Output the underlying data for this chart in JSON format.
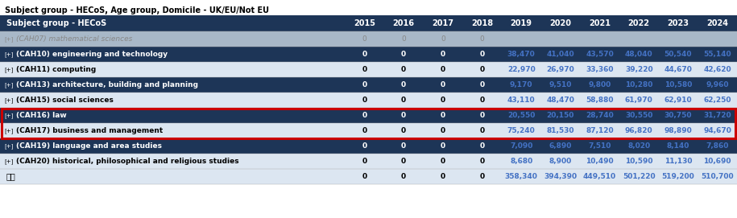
{
  "title": "Subject group - HECoS, Age group, Domicile - UK/EU/Not EU",
  "header": [
    "Subject group - HECoS",
    "2015",
    "2016",
    "2017",
    "2018",
    "2019",
    "2020",
    "2021",
    "2022",
    "2023",
    "2024"
  ],
  "rows": [
    {
      "label": "(CAH07) mathematical sciences",
      "values": [
        "0",
        "0",
        "0",
        "0",
        "",
        "",
        "",
        "",
        "",
        ""
      ],
      "style": "faded"
    },
    {
      "label": "(CAH10) engineering and technology",
      "values": [
        "0",
        "0",
        "0",
        "0",
        "38,470",
        "41,040",
        "43,570",
        "48,040",
        "50,540",
        "55,140"
      ],
      "style": "dark"
    },
    {
      "label": "(CAH11) computing",
      "values": [
        "0",
        "0",
        "0",
        "0",
        "22,970",
        "26,970",
        "33,360",
        "39,220",
        "44,670",
        "42,620"
      ],
      "style": "light"
    },
    {
      "label": "(CAH13) architecture, building and planning",
      "values": [
        "0",
        "0",
        "0",
        "0",
        "9,170",
        "9,510",
        "9,800",
        "10,280",
        "10,580",
        "9,960"
      ],
      "style": "dark"
    },
    {
      "label": "(CAH15) social sciences",
      "values": [
        "0",
        "0",
        "0",
        "0",
        "43,110",
        "48,470",
        "58,880",
        "61,970",
        "62,910",
        "62,250"
      ],
      "style": "light"
    },
    {
      "label": "(CAH16) law",
      "values": [
        "0",
        "0",
        "0",
        "0",
        "20,550",
        "20,150",
        "28,740",
        "30,550",
        "30,750",
        "31,720"
      ],
      "style": "dark",
      "highlighted": true
    },
    {
      "label": "(CAH17) business and management",
      "values": [
        "0",
        "0",
        "0",
        "0",
        "75,240",
        "81,530",
        "87,120",
        "96,820",
        "98,890",
        "94,670"
      ],
      "style": "light",
      "highlighted": true
    },
    {
      "label": "(CAH19) language and area studies",
      "values": [
        "0",
        "0",
        "0",
        "0",
        "7,090",
        "6,890",
        "7,510",
        "8,020",
        "8,140",
        "7,860"
      ],
      "style": "dark"
    },
    {
      "label": "(CAH20) historical, philosophical and religious studies",
      "values": [
        "0",
        "0",
        "0",
        "0",
        "8,680",
        "8,900",
        "10,490",
        "10,590",
        "11,130",
        "10,690"
      ],
      "style": "light"
    }
  ],
  "total_row": {
    "label": "总计",
    "values": [
      "0",
      "0",
      "0",
      "0",
      "358,340",
      "394,390",
      "449,510",
      "501,220",
      "519,200",
      "510,700"
    ]
  },
  "header_bg": "#1d3557",
  "header_fg": "#ffffff",
  "dark_bg": "#1d3557",
  "dark_fg": "#ffffff",
  "light_bg": "#dce6f1",
  "light_fg": "#000000",
  "faded_bg": "#a8b8c8",
  "faded_fg": "#888888",
  "total_bg": "#dce6f1",
  "total_fg": "#000000",
  "highlight_color": "#cc0000",
  "blue_text": "#4472c4",
  "white_zero": "#ffffff",
  "black_zero": "#000000"
}
